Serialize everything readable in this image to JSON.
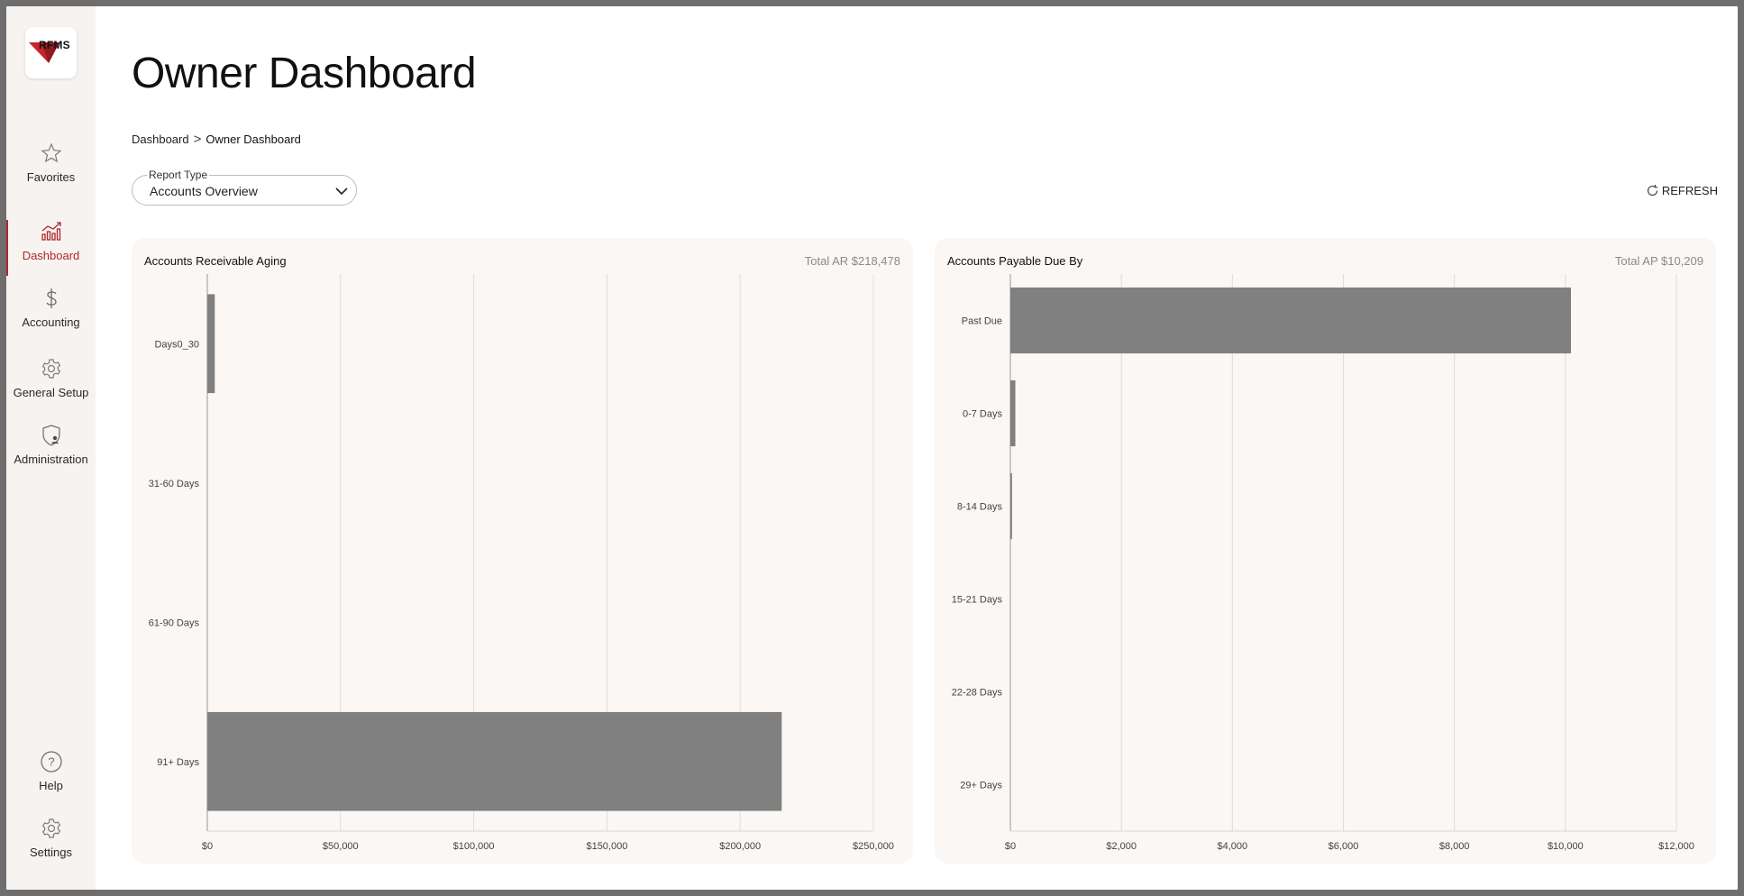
{
  "sidebar": {
    "logo_text": "RFMS",
    "items": [
      {
        "label": "Favorites",
        "icon": "star-icon"
      },
      {
        "label": "Dashboard",
        "icon": "chart-icon",
        "active": true
      },
      {
        "label": "Accounting",
        "icon": "dollar-icon"
      },
      {
        "label": "General Setup",
        "icon": "gear-icon"
      },
      {
        "label": "Administration",
        "icon": "shield-user-icon"
      }
    ],
    "bottom_items": [
      {
        "label": "Help",
        "icon": "help-icon"
      },
      {
        "label": "Settings",
        "icon": "gear-icon"
      }
    ]
  },
  "header": {
    "title": "Owner Dashboard",
    "breadcrumb": {
      "root": "Dashboard",
      "separator": ">",
      "current": "Owner Dashboard"
    }
  },
  "report_type": {
    "label": "Report Type",
    "value": "Accounts Overview"
  },
  "refresh_label": "REFRESH",
  "colors": {
    "accent": "#b3262c",
    "bar": "#808080",
    "card_bg": "#faf7f5"
  },
  "chart_data": [
    {
      "type": "bar",
      "orientation": "horizontal",
      "title": "Accounts Receivable Aging",
      "total_label": "Total AR $218,478",
      "categories": [
        "Days0_30",
        "31-60 Days",
        "61-90 Days",
        "91+ Days"
      ],
      "values": [
        2800,
        0,
        0,
        215600
      ],
      "xlim": [
        0,
        250000
      ],
      "xticks": [
        "$0",
        "$50,000",
        "$100,000",
        "$150,000",
        "$200,000",
        "$250,000"
      ],
      "grid": true
    },
    {
      "type": "bar",
      "orientation": "horizontal",
      "title": "Accounts Payable Due By",
      "total_label": "Total AP $10,209",
      "categories": [
        "Past Due",
        "0-7 Days",
        "8-14 Days",
        "15-21 Days",
        "22-28 Days",
        "29+ Days"
      ],
      "values": [
        10100,
        90,
        30,
        0,
        0,
        0
      ],
      "xlim": [
        0,
        12000
      ],
      "xticks": [
        "$0",
        "$2,000",
        "$4,000",
        "$6,000",
        "$8,000",
        "$10,000",
        "$12,000"
      ],
      "grid": true
    }
  ]
}
